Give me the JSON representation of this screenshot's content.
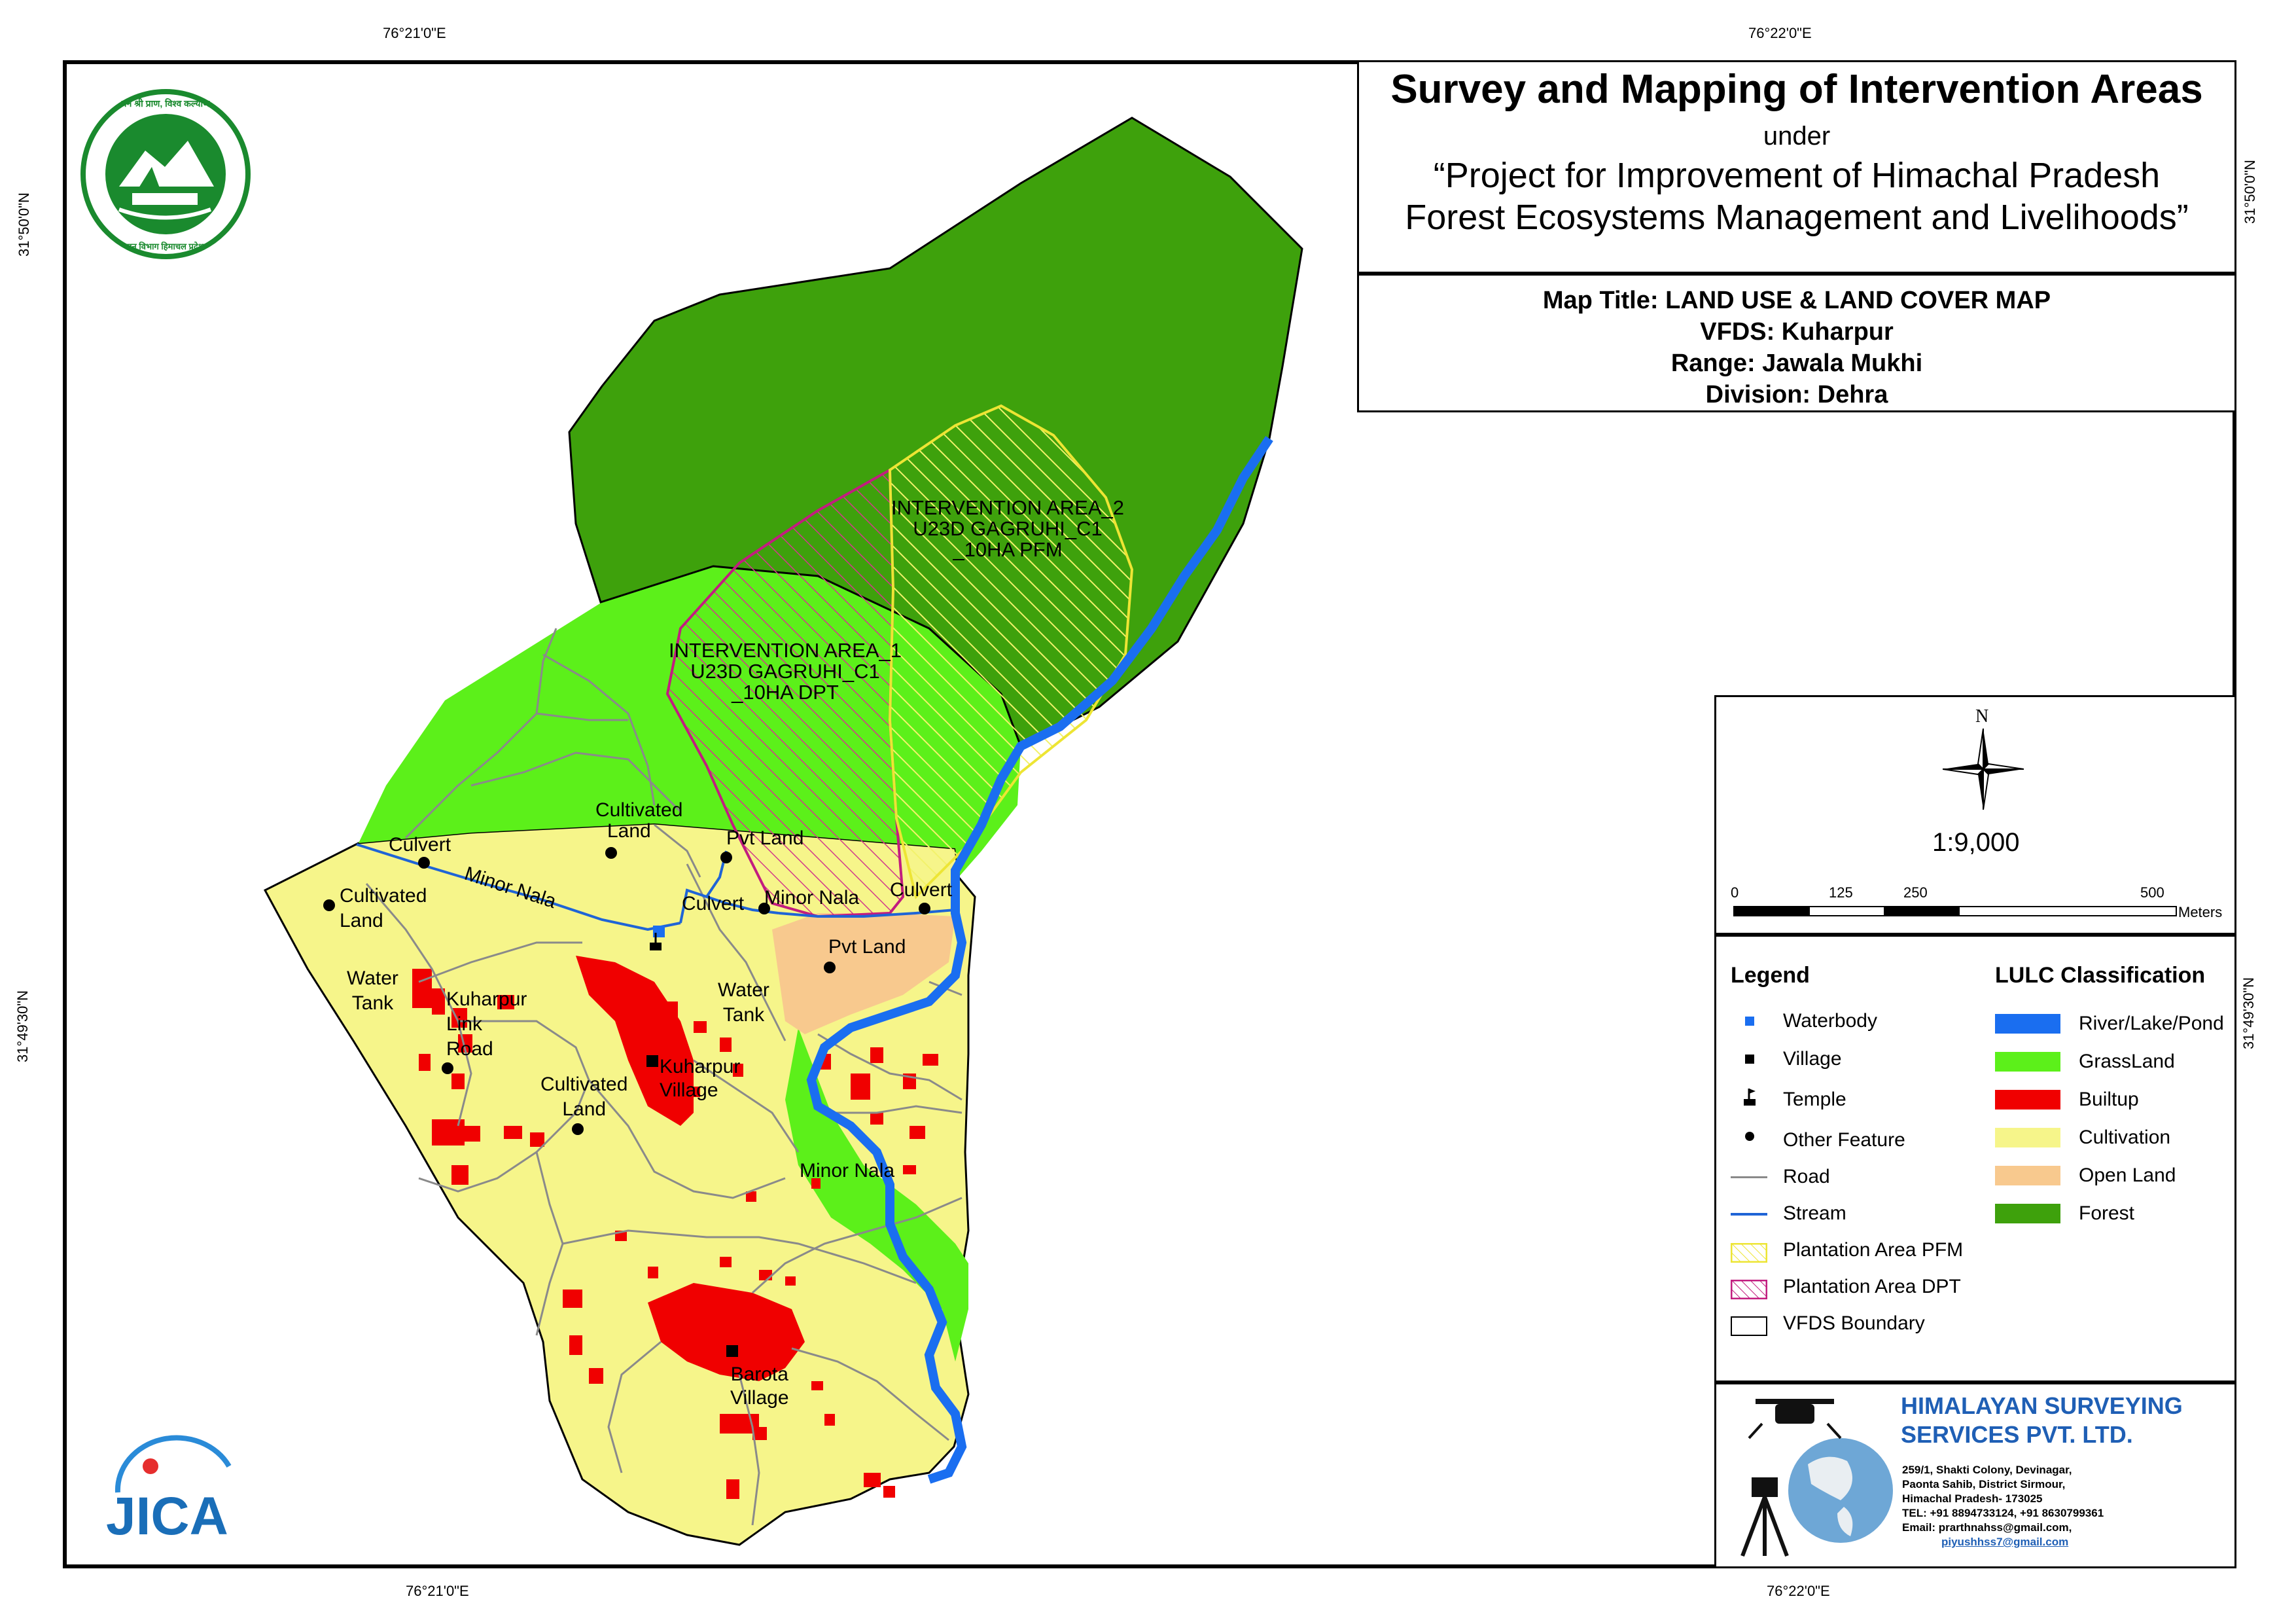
{
  "coords": {
    "top_left": "76°21'0\"E",
    "top_right": "76°22'0\"E",
    "bottom_left": "76°21'0\"E",
    "bottom_right": "76°22'0\"E",
    "left_top": "31°50'0\"N",
    "left_bottom": "31°49'30\"N",
    "right_top": "31°50'0\"N",
    "right_bottom": "31°49'30\"N"
  },
  "title": {
    "main": "Survey and Mapping of Intervention Areas",
    "under": "under",
    "project_line1": "“Project for Improvement of Himachal Pradesh",
    "project_line2": "Forest Ecosystems Management and Livelihoods”"
  },
  "map_info": {
    "map_title": "Map Title: LAND USE & LAND COVER MAP",
    "vfds": "VFDS: Kuharpur",
    "range": "Range: Jawala Mukhi",
    "division": "Division: Dehra"
  },
  "north": "N",
  "scale": {
    "ratio": "1:9,000",
    "ticks": [
      "0",
      "125",
      "250",
      "500"
    ],
    "unit": "Meters"
  },
  "legend": {
    "heading": "Legend",
    "items": [
      {
        "label": "Waterbody",
        "icon": "waterbody-square"
      },
      {
        "label": "Village",
        "icon": "village-square"
      },
      {
        "label": "Temple",
        "icon": "temple-flag"
      },
      {
        "label": "Other Feature",
        "icon": "dot"
      },
      {
        "label": "Road",
        "icon": "grey-line"
      },
      {
        "label": "Stream",
        "icon": "blue-line"
      },
      {
        "label": "Plantation Area PFM",
        "icon": "yellow-hatch"
      },
      {
        "label": "Plantation Area DPT",
        "icon": "magenta-hatch"
      },
      {
        "label": "VFDS Boundary",
        "icon": "outline-box"
      }
    ]
  },
  "lulc": {
    "heading": "LULC Classification",
    "classes": [
      {
        "label": "River/Lake/Pond",
        "color": "#1a6ef0"
      },
      {
        "label": "GrassLand",
        "color": "#5cf01a"
      },
      {
        "label": "Builtup",
        "color": "#f00000"
      },
      {
        "label": "Cultivation",
        "color": "#f6f58a"
      },
      {
        "label": "Open Land",
        "color": "#f8c98e"
      },
      {
        "label": "Forest",
        "color": "#3ea10c"
      }
    ]
  },
  "company": {
    "name1": "HIMALAYAN SURVEYING",
    "name2": "SERVICES PVT. LTD.",
    "addr1": "259/1, Shakti Colony, Devinagar,",
    "addr2": "Paonta Sahib, District Sirmour,",
    "addr3": "Himachal Pradesh- 173025",
    "tel": "TEL: +91 8894733124, +91 8630799361",
    "email1": "Email: prarthnahss@gmail.com,",
    "email2": "piyushhss7@gmail.com"
  },
  "logo_text": {
    "hp_forest_top": "वन श्री प्राण, विश्व कल्याण",
    "hp_forest_bottom": "वन विभाग हिमाचल प्रदेश",
    "jica": "JICA"
  },
  "map_labels": {
    "ia2": [
      "INTERVENTION AREA_2",
      "U23D GAGRUHI_C1",
      "_10HA PFM"
    ],
    "ia1": [
      "INTERVENTION AREA_1",
      "U23D GAGRUHI_C1",
      "_10HA DPT"
    ],
    "culvert_w": "Culvert",
    "cultivated_n": [
      "Cultivated",
      "Land"
    ],
    "pvt_land_n": "Pvt Land",
    "cultivated_w": [
      "Cultivated",
      "Land"
    ],
    "minor_nala_w": "Minor Nala",
    "culvert_c": "Culvert",
    "minor_nala_c": "Minor Nala",
    "culvert_e": "Culvert",
    "pvt_land_c": "Pvt Land",
    "water_tank_w": [
      "Water",
      "Tank"
    ],
    "kuharpur_link": [
      "Kuharpur",
      "Link",
      "Road"
    ],
    "water_tank_c": [
      "Water",
      "Tank"
    ],
    "kuharpur_village": [
      "Kuharpur",
      "Village"
    ],
    "cultivated_s": [
      "Cultivated",
      "Land"
    ],
    "minor_nala_s": "Minor Nala",
    "barota_village": [
      "Barota",
      "Village"
    ]
  }
}
